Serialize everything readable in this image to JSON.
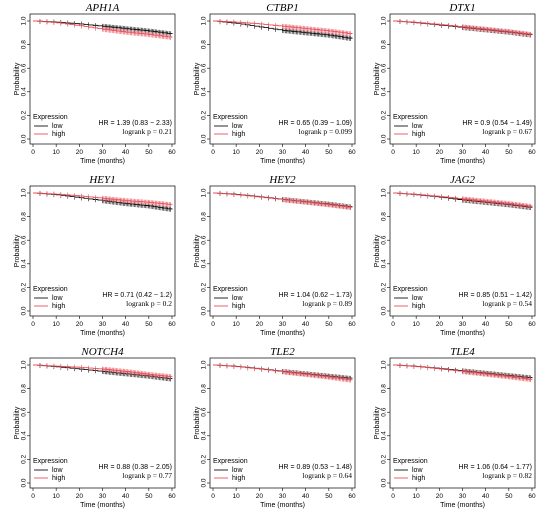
{
  "colors": {
    "low": "#111111",
    "high": "#e8505b"
  },
  "chart_data": [
    {
      "type": "line",
      "title": "APH1A",
      "xlabel": "Time (months)",
      "ylabel": "Probability",
      "xlim": [
        0,
        60
      ],
      "ylim": [
        0,
        1.0
      ],
      "x_ticks": [
        "0",
        "10",
        "20",
        "30",
        "40",
        "50",
        "60"
      ],
      "y_ticks": [
        "0.0",
        "0.2",
        "0.4",
        "0.6",
        "0.8",
        "1.0"
      ],
      "legend": {
        "title": "Expression",
        "position": "bottom-left",
        "entries": [
          "low",
          "high"
        ]
      },
      "series": [
        {
          "name": "low",
          "x": [
            0,
            10,
            20,
            30,
            40,
            50,
            60
          ],
          "y": [
            1.0,
            0.99,
            0.975,
            0.955,
            0.935,
            0.915,
            0.89
          ]
        },
        {
          "name": "high",
          "x": [
            0,
            10,
            20,
            30,
            40,
            50,
            60
          ],
          "y": [
            1.0,
            0.985,
            0.96,
            0.93,
            0.905,
            0.885,
            0.86
          ]
        }
      ],
      "hr": "HR = 1.39 (0.83 − 2.33)",
      "logrank": "logrank p = 0.21"
    },
    {
      "type": "line",
      "title": "CTBP1",
      "xlabel": "Time (months)",
      "ylabel": "Probability",
      "xlim": [
        0,
        60
      ],
      "ylim": [
        0,
        1.0
      ],
      "x_ticks": [
        "0",
        "10",
        "20",
        "30",
        "40",
        "50",
        "60"
      ],
      "y_ticks": [
        "0.0",
        "0.2",
        "0.4",
        "0.6",
        "0.8",
        "1.0"
      ],
      "legend": {
        "title": "Expression",
        "position": "bottom-left",
        "entries": [
          "low",
          "high"
        ]
      },
      "series": [
        {
          "name": "low",
          "x": [
            0,
            10,
            20,
            30,
            40,
            50,
            60
          ],
          "y": [
            1.0,
            0.98,
            0.95,
            0.92,
            0.9,
            0.88,
            0.85
          ]
        },
        {
          "name": "high",
          "x": [
            0,
            10,
            20,
            30,
            40,
            50,
            60
          ],
          "y": [
            1.0,
            0.99,
            0.975,
            0.955,
            0.935,
            0.915,
            0.89
          ]
        }
      ],
      "hr": "HR = 0.65 (0.39 − 1.09)",
      "logrank": "logrank p = 0.099"
    },
    {
      "type": "line",
      "title": "DTX1",
      "xlabel": "Time (months)",
      "ylabel": "Probability",
      "xlim": [
        0,
        60
      ],
      "ylim": [
        0,
        1.0
      ],
      "x_ticks": [
        "0",
        "10",
        "20",
        "30",
        "40",
        "50",
        "60"
      ],
      "y_ticks": [
        "0.0",
        "0.2",
        "0.4",
        "0.6",
        "0.8",
        "1.0"
      ],
      "legend": {
        "title": "Expression",
        "position": "bottom-left",
        "entries": [
          "low",
          "high"
        ]
      },
      "series": [
        {
          "name": "low",
          "x": [
            0,
            10,
            20,
            30,
            40,
            50,
            60
          ],
          "y": [
            1.0,
            0.985,
            0.965,
            0.945,
            0.925,
            0.905,
            0.88
          ]
        },
        {
          "name": "high",
          "x": [
            0,
            10,
            20,
            30,
            40,
            50,
            60
          ],
          "y": [
            1.0,
            0.988,
            0.97,
            0.95,
            0.93,
            0.91,
            0.885
          ]
        }
      ],
      "hr": "HR = 0.9 (0.54 − 1.49)",
      "logrank": "logrank p = 0.67"
    },
    {
      "type": "line",
      "title": "HEY1",
      "xlabel": "Time (months)",
      "ylabel": "Probability",
      "xlim": [
        0,
        60
      ],
      "ylim": [
        0,
        1.0
      ],
      "x_ticks": [
        "0",
        "10",
        "20",
        "30",
        "40",
        "50",
        "60"
      ],
      "y_ticks": [
        "0.0",
        "0.2",
        "0.4",
        "0.6",
        "0.8",
        "1.0"
      ],
      "legend": {
        "title": "Expression",
        "position": "bottom-left",
        "entries": [
          "low",
          "high"
        ]
      },
      "series": [
        {
          "name": "low",
          "x": [
            0,
            10,
            20,
            30,
            40,
            50,
            60
          ],
          "y": [
            1.0,
            0.985,
            0.96,
            0.935,
            0.91,
            0.89,
            0.86
          ]
        },
        {
          "name": "high",
          "x": [
            0,
            10,
            20,
            30,
            40,
            50,
            60
          ],
          "y": [
            1.0,
            0.99,
            0.975,
            0.955,
            0.935,
            0.92,
            0.9
          ]
        }
      ],
      "hr": "HR = 0.71 (0.42 − 1.2)",
      "logrank": "logrank p = 0.2"
    },
    {
      "type": "line",
      "title": "HEY2",
      "xlabel": "Time (months)",
      "ylabel": "Probability",
      "xlim": [
        0,
        60
      ],
      "ylim": [
        0,
        1.0
      ],
      "x_ticks": [
        "0",
        "10",
        "20",
        "30",
        "40",
        "50",
        "60"
      ],
      "y_ticks": [
        "0.0",
        "0.2",
        "0.4",
        "0.6",
        "0.8",
        "1.0"
      ],
      "legend": {
        "title": "Expression",
        "position": "bottom-left",
        "entries": [
          "low",
          "high"
        ]
      },
      "series": [
        {
          "name": "low",
          "x": [
            0,
            10,
            20,
            30,
            40,
            50,
            60
          ],
          "y": [
            1.0,
            0.988,
            0.968,
            0.945,
            0.925,
            0.905,
            0.88
          ]
        },
        {
          "name": "high",
          "x": [
            0,
            10,
            20,
            30,
            40,
            50,
            60
          ],
          "y": [
            1.0,
            0.985,
            0.965,
            0.943,
            0.922,
            0.9,
            0.875
          ]
        }
      ],
      "hr": "HR = 1.04 (0.62 − 1.73)",
      "logrank": "logrank p = 0.89"
    },
    {
      "type": "line",
      "title": "JAG2",
      "xlabel": "Time (months)",
      "ylabel": "Probability",
      "xlim": [
        0,
        60
      ],
      "ylim": [
        0,
        1.0
      ],
      "x_ticks": [
        "0",
        "10",
        "20",
        "30",
        "40",
        "50",
        "60"
      ],
      "y_ticks": [
        "0.0",
        "0.2",
        "0.4",
        "0.6",
        "0.8",
        "1.0"
      ],
      "legend": {
        "title": "Expression",
        "position": "bottom-left",
        "entries": [
          "low",
          "high"
        ]
      },
      "series": [
        {
          "name": "low",
          "x": [
            0,
            10,
            20,
            30,
            40,
            50,
            60
          ],
          "y": [
            1.0,
            0.985,
            0.965,
            0.94,
            0.92,
            0.9,
            0.875
          ]
        },
        {
          "name": "high",
          "x": [
            0,
            10,
            20,
            30,
            40,
            50,
            60
          ],
          "y": [
            1.0,
            0.988,
            0.97,
            0.95,
            0.93,
            0.91,
            0.885
          ]
        }
      ],
      "hr": "HR = 0.85 (0.51 − 1.42)",
      "logrank": "logrank p = 0.54"
    },
    {
      "type": "line",
      "title": "NOTCH4",
      "xlabel": "Time (months)",
      "ylabel": "Probability",
      "xlim": [
        0,
        60
      ],
      "ylim": [
        0,
        1.0
      ],
      "x_ticks": [
        "0",
        "10",
        "20",
        "30",
        "40",
        "50",
        "60"
      ],
      "y_ticks": [
        "0.0",
        "0.2",
        "0.4",
        "0.6",
        "0.8",
        "1.0"
      ],
      "legend": {
        "title": "Expression",
        "position": "bottom-left",
        "entries": [
          "low",
          "high"
        ]
      },
      "series": [
        {
          "name": "low",
          "x": [
            0,
            10,
            20,
            30,
            40,
            50,
            60
          ],
          "y": [
            1.0,
            0.985,
            0.965,
            0.945,
            0.925,
            0.905,
            0.88
          ]
        },
        {
          "name": "high",
          "x": [
            0,
            10,
            20,
            30,
            40,
            50,
            60
          ],
          "y": [
            1.0,
            0.99,
            0.98,
            0.965,
            0.945,
            0.92,
            0.9
          ]
        }
      ],
      "hr": "HR = 0.88 (0.38 − 2.05)",
      "logrank": "logrank p = 0.77"
    },
    {
      "type": "line",
      "title": "TLE2",
      "xlabel": "Time (months)",
      "ylabel": "Probability",
      "xlim": [
        0,
        60
      ],
      "ylim": [
        0,
        1.0
      ],
      "x_ticks": [
        "0",
        "10",
        "20",
        "30",
        "40",
        "50",
        "60"
      ],
      "y_ticks": [
        "0.0",
        "0.2",
        "0.4",
        "0.6",
        "0.8",
        "1.0"
      ],
      "legend": {
        "title": "Expression",
        "position": "bottom-left",
        "entries": [
          "low",
          "high"
        ]
      },
      "series": [
        {
          "name": "low",
          "x": [
            0,
            10,
            20,
            30,
            40,
            50,
            60
          ],
          "y": [
            1.0,
            0.988,
            0.968,
            0.945,
            0.925,
            0.905,
            0.885
          ]
        },
        {
          "name": "high",
          "x": [
            0,
            10,
            20,
            30,
            40,
            50,
            60
          ],
          "y": [
            1.0,
            0.986,
            0.965,
            0.942,
            0.92,
            0.897,
            0.87
          ]
        }
      ],
      "hr": "HR = 0.89 (0.53 − 1.48)",
      "logrank": "logrank p = 0.64"
    },
    {
      "type": "line",
      "title": "TLE4",
      "xlabel": "Time (months)",
      "ylabel": "Probability",
      "xlim": [
        0,
        60
      ],
      "ylim": [
        0,
        1.0
      ],
      "x_ticks": [
        "0",
        "10",
        "20",
        "30",
        "40",
        "50",
        "60"
      ],
      "y_ticks": [
        "0.0",
        "0.2",
        "0.4",
        "0.6",
        "0.8",
        "1.0"
      ],
      "legend": {
        "title": "Expression",
        "position": "bottom-left",
        "entries": [
          "low",
          "high"
        ]
      },
      "series": [
        {
          "name": "low",
          "x": [
            0,
            10,
            20,
            30,
            40,
            50,
            60
          ],
          "y": [
            1.0,
            0.988,
            0.97,
            0.95,
            0.93,
            0.91,
            0.89
          ]
        },
        {
          "name": "high",
          "x": [
            0,
            10,
            20,
            30,
            40,
            50,
            60
          ],
          "y": [
            1.0,
            0.986,
            0.966,
            0.944,
            0.922,
            0.9,
            0.875
          ]
        }
      ],
      "hr": "HR = 1.06 (0.64 − 1.77)",
      "logrank": "logrank p = 0.82"
    }
  ]
}
